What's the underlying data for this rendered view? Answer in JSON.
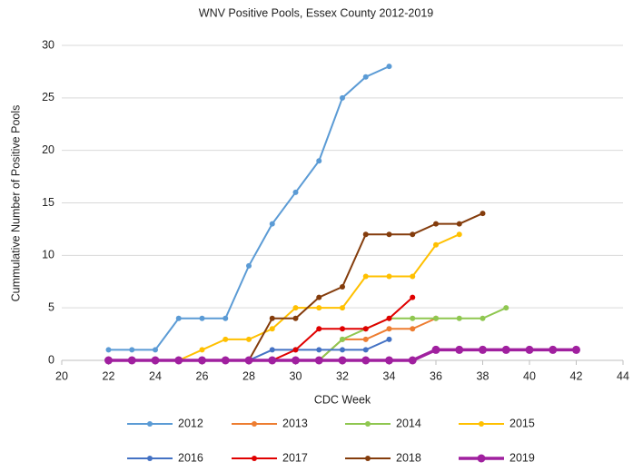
{
  "chart_data": {
    "type": "line",
    "title": "WNV Positive Pools, Essex County 2012-2019",
    "xlabel": "CDC Week",
    "ylabel": "Cummulative Number of Positive Pools",
    "x": [
      22,
      23,
      24,
      25,
      26,
      27,
      28,
      29,
      30,
      31,
      32,
      33,
      34,
      35,
      36,
      37,
      38,
      39,
      40,
      41,
      42
    ],
    "xlim": [
      20,
      44
    ],
    "xticks": [
      20,
      22,
      24,
      26,
      28,
      30,
      32,
      34,
      36,
      38,
      40,
      42,
      44
    ],
    "ylim": [
      0,
      30
    ],
    "yticks": [
      0,
      5,
      10,
      15,
      20,
      25,
      30
    ],
    "grid": true,
    "legend": "bottom",
    "series": [
      {
        "name": "2012",
        "color": "#5b9bd5",
        "values": [
          1,
          1,
          1,
          4,
          4,
          4,
          9,
          13,
          16,
          19,
          25,
          27,
          28,
          null,
          null,
          null,
          null,
          null,
          null,
          null,
          null
        ]
      },
      {
        "name": "2013",
        "color": "#ed7d31",
        "values": [
          0,
          0,
          0,
          0,
          0,
          0,
          0,
          0,
          0,
          0,
          2,
          2,
          3,
          3,
          4,
          null,
          null,
          null,
          null,
          null,
          null
        ]
      },
      {
        "name": "2014",
        "color": "#8fc750",
        "values": [
          0,
          0,
          0,
          0,
          0,
          0,
          0,
          0,
          0,
          0,
          2,
          3,
          4,
          4,
          4,
          4,
          4,
          5,
          null,
          null,
          null
        ]
      },
      {
        "name": "2015",
        "color": "#ffc000",
        "values": [
          0,
          0,
          0,
          0,
          1,
          2,
          2,
          3,
          5,
          5,
          5,
          8,
          8,
          8,
          11,
          12,
          null,
          null,
          null,
          null,
          null
        ]
      },
      {
        "name": "2016",
        "color": "#4472c4",
        "values": [
          0,
          0,
          0,
          0,
          0,
          0,
          0,
          1,
          1,
          1,
          1,
          1,
          2,
          null,
          null,
          null,
          null,
          null,
          null,
          null,
          null
        ]
      },
      {
        "name": "2017",
        "color": "#e00000",
        "values": [
          0,
          0,
          0,
          0,
          0,
          0,
          0,
          0,
          1,
          3,
          3,
          3,
          4,
          6,
          null,
          null,
          null,
          null,
          null,
          null,
          null
        ]
      },
      {
        "name": "2018",
        "color": "#843c0c",
        "values": [
          0,
          0,
          0,
          0,
          0,
          0,
          0,
          4,
          4,
          6,
          7,
          12,
          12,
          12,
          13,
          13,
          14,
          null,
          null,
          null,
          null
        ]
      },
      {
        "name": "2019",
        "color": "#a0209f",
        "values": [
          0,
          0,
          0,
          0,
          0,
          0,
          0,
          0,
          0,
          0,
          0,
          0,
          0,
          0,
          1,
          1,
          1,
          1,
          1,
          1,
          1
        ]
      }
    ]
  }
}
